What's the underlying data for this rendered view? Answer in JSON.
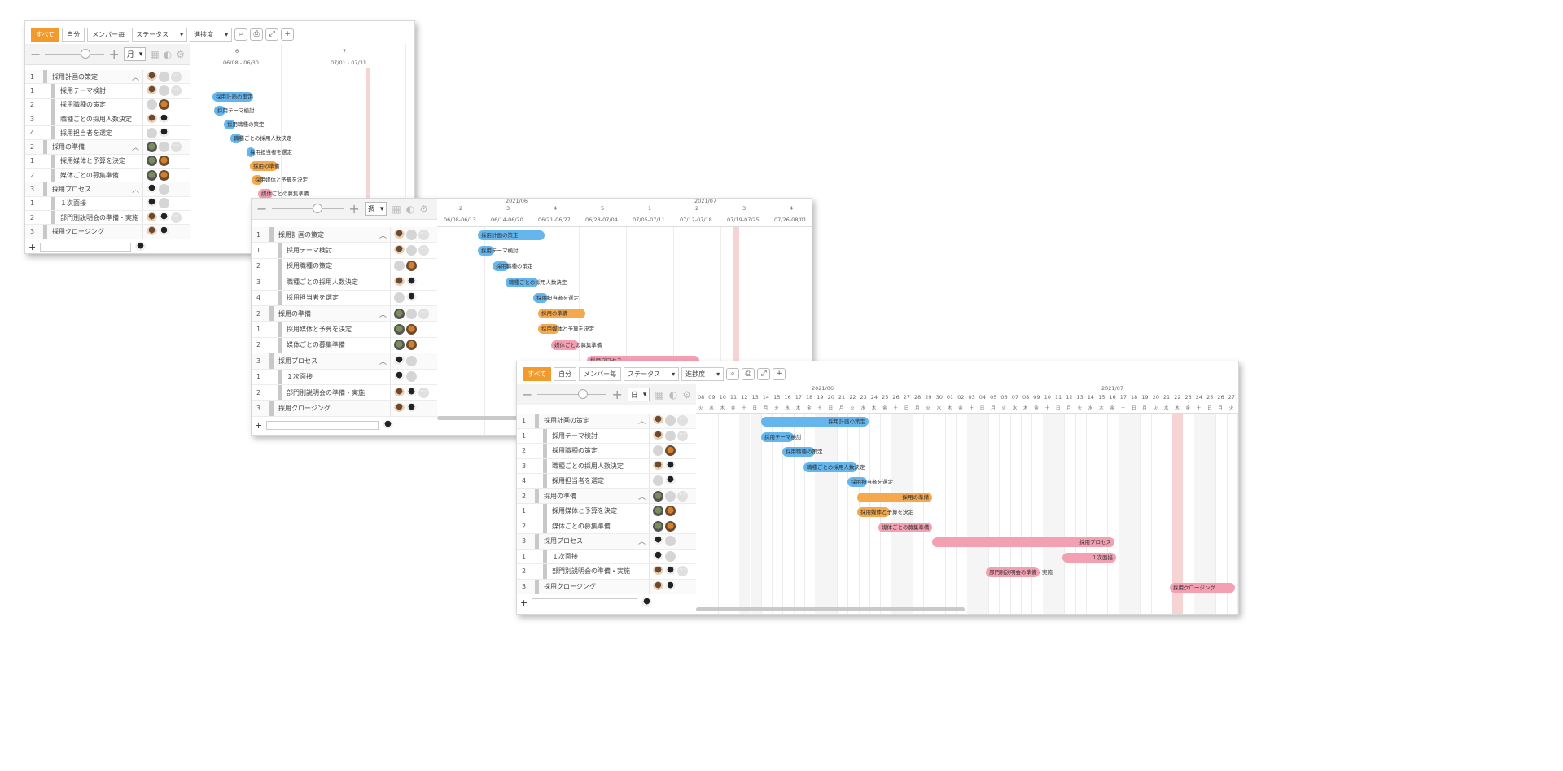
{
  "toolbar": {
    "all": "すべて",
    "mine": "自分",
    "by_member": "メンバー毎",
    "status": "ステータス",
    "progress": "進捗度"
  },
  "tasks": [
    {
      "num": "1",
      "name": "採用計画の策定",
      "level": "parent",
      "avatars": [
        "p",
        "e",
        "m"
      ]
    },
    {
      "num": "1",
      "name": "採用テーマ検討",
      "level": "child",
      "avatars": [
        "p",
        "e",
        "m"
      ]
    },
    {
      "num": "2",
      "name": "採用職種の策定",
      "level": "child",
      "avatars": [
        "e",
        "o"
      ]
    },
    {
      "num": "3",
      "name": "職種ごとの採用人数決定",
      "level": "child",
      "avatars": [
        "p",
        "b"
      ]
    },
    {
      "num": "4",
      "name": "採用担当者を選定",
      "level": "child",
      "avatars": [
        "e",
        "b"
      ]
    },
    {
      "num": "2",
      "name": "採用の準備",
      "level": "parent",
      "avatars": [
        "g",
        "e",
        "m"
      ]
    },
    {
      "num": "1",
      "name": "採用媒体と予算を決定",
      "level": "child",
      "avatars": [
        "g",
        "o"
      ]
    },
    {
      "num": "2",
      "name": "媒体ごとの募集準備",
      "level": "child",
      "avatars": [
        "g",
        "o"
      ]
    },
    {
      "num": "3",
      "name": "採用プロセス",
      "level": "parent",
      "avatars": [
        "b",
        "e"
      ]
    },
    {
      "num": "1",
      "name": "１次面接",
      "level": "child",
      "avatars": [
        "b",
        "e"
      ]
    },
    {
      "num": "2",
      "name": "部門別説明会の準備・実施",
      "level": "child",
      "avatars": [
        "p",
        "b",
        "m"
      ]
    },
    {
      "num": "3",
      "name": "採用クロージング",
      "level": "parent",
      "avatars": [
        "p",
        "b"
      ]
    }
  ],
  "bars": [
    {
      "label": "採用計画の策定",
      "color": "blue"
    },
    {
      "label": "採用テーマ検討",
      "color": "blue"
    },
    {
      "label": "採用職種の策定",
      "color": "blue"
    },
    {
      "label": "職種ごとの採用人数決定",
      "color": "blue"
    },
    {
      "label": "採用担当者を選定",
      "color": "blue"
    },
    {
      "label": "採用の準備",
      "color": "orange"
    },
    {
      "label": "採用媒体と予算を決定",
      "color": "orange"
    },
    {
      "label": "媒体ごとの募集準備",
      "color": "pink"
    },
    {
      "label": "採用プロセス",
      "color": "pink"
    },
    {
      "label": "１次面接",
      "color": "pink"
    },
    {
      "label": "部門別説明会の準備・実施",
      "color": "pink"
    },
    {
      "label": "採用クロージング",
      "color": "pink"
    }
  ],
  "win1": {
    "scale": "月",
    "months": [
      {
        "num": "6",
        "range": "06/08 - 06/30"
      },
      {
        "num": "7",
        "range": "07/01 - 07/31"
      }
    ]
  },
  "win2": {
    "scale": "週",
    "months": [
      "2021/06",
      "2021/07"
    ],
    "weeks": [
      {
        "num": "2",
        "range": "06/08-06/13"
      },
      {
        "num": "3",
        "range": "06/14-06/20"
      },
      {
        "num": "4",
        "range": "06/21-06/27"
      },
      {
        "num": "5",
        "range": "06/28-07/04"
      },
      {
        "num": "1",
        "range": "07/05-07/11"
      },
      {
        "num": "2",
        "range": "07/12-07/18"
      },
      {
        "num": "3",
        "range": "07/19-07/25"
      },
      {
        "num": "4",
        "range": "07/26-08/01"
      }
    ]
  },
  "win3": {
    "scale": "日",
    "months": [
      "2021/06",
      "2021/07"
    ],
    "days": [
      "08",
      "09",
      "10",
      "11",
      "12",
      "13",
      "14",
      "15",
      "16",
      "17",
      "18",
      "19",
      "20",
      "21",
      "22",
      "23",
      "24",
      "25",
      "26",
      "27",
      "28",
      "29",
      "30",
      "01",
      "02",
      "03",
      "04",
      "05",
      "06",
      "07",
      "08",
      "09",
      "10",
      "11",
      "12",
      "13",
      "14",
      "15",
      "16",
      "17",
      "18",
      "19",
      "20",
      "21",
      "22",
      "23",
      "24",
      "25",
      "26",
      "27"
    ],
    "weekdays": [
      "火",
      "水",
      "木",
      "金",
      "土",
      "日",
      "月",
      "火",
      "水",
      "木",
      "金",
      "土",
      "日",
      "月",
      "火",
      "水",
      "木",
      "金",
      "土",
      "日",
      "月",
      "火",
      "水",
      "木",
      "金",
      "土",
      "日",
      "月",
      "火",
      "水",
      "木",
      "金",
      "土",
      "日",
      "月",
      "火",
      "水",
      "木",
      "金",
      "土",
      "日",
      "月",
      "火",
      "水",
      "木",
      "金",
      "土",
      "日",
      "月",
      "火"
    ]
  }
}
